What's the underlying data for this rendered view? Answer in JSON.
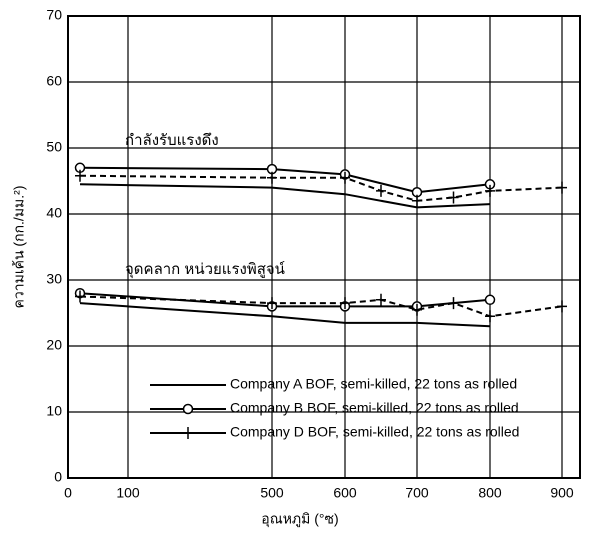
{
  "chart_data": {
    "type": "line",
    "y_label": "ความเค้น (กก./มม.²)",
    "x_label": "อุณหภูมิ (°ซ)",
    "annotations": [
      "กำลังรับแรงดึง",
      "จุดคลาก หน่วยแรงพิสูจน์"
    ],
    "xlim": [
      0,
      900
    ],
    "xticks": [
      0,
      100,
      500,
      600,
      700,
      800,
      900
    ],
    "ylim": [
      0,
      70
    ],
    "yticks": [
      0,
      10,
      20,
      30,
      40,
      50,
      60,
      70
    ],
    "grid": true,
    "series": [
      {
        "name": "Company A BOF, semi-killed, 22 tons as rolled",
        "color": "#000000",
        "marker": "none",
        "dashed": false,
        "x": [
          20,
          500,
          600,
          700,
          800
        ],
        "values": [
          44.5,
          44,
          43,
          41,
          41.5
        ],
        "yield_values": [
          26.5,
          24.5,
          23.5,
          23.5,
          23
        ]
      },
      {
        "name": "Company B BOF, semi-killed, 22 tons as rolled",
        "color": "#000000",
        "marker": "circle",
        "dashed": false,
        "x": [
          20,
          500,
          600,
          700,
          800
        ],
        "values": [
          47,
          46.8,
          46,
          43.3,
          44.5
        ],
        "yield_values": [
          28,
          26,
          26,
          26,
          27
        ]
      },
      {
        "name": "Company D BOF, semi-killed, 22 tons as rolled",
        "color": "#000000",
        "marker": "plus",
        "dashed": true,
        "x": [
          20,
          500,
          600,
          650,
          700,
          750,
          800,
          900
        ],
        "values": [
          45.8,
          45.5,
          45.5,
          43.5,
          42,
          42.5,
          43.5,
          44
        ],
        "yield_values": [
          27.5,
          26.5,
          26.5,
          27,
          25.5,
          26.5,
          24.5,
          26
        ]
      }
    ]
  }
}
